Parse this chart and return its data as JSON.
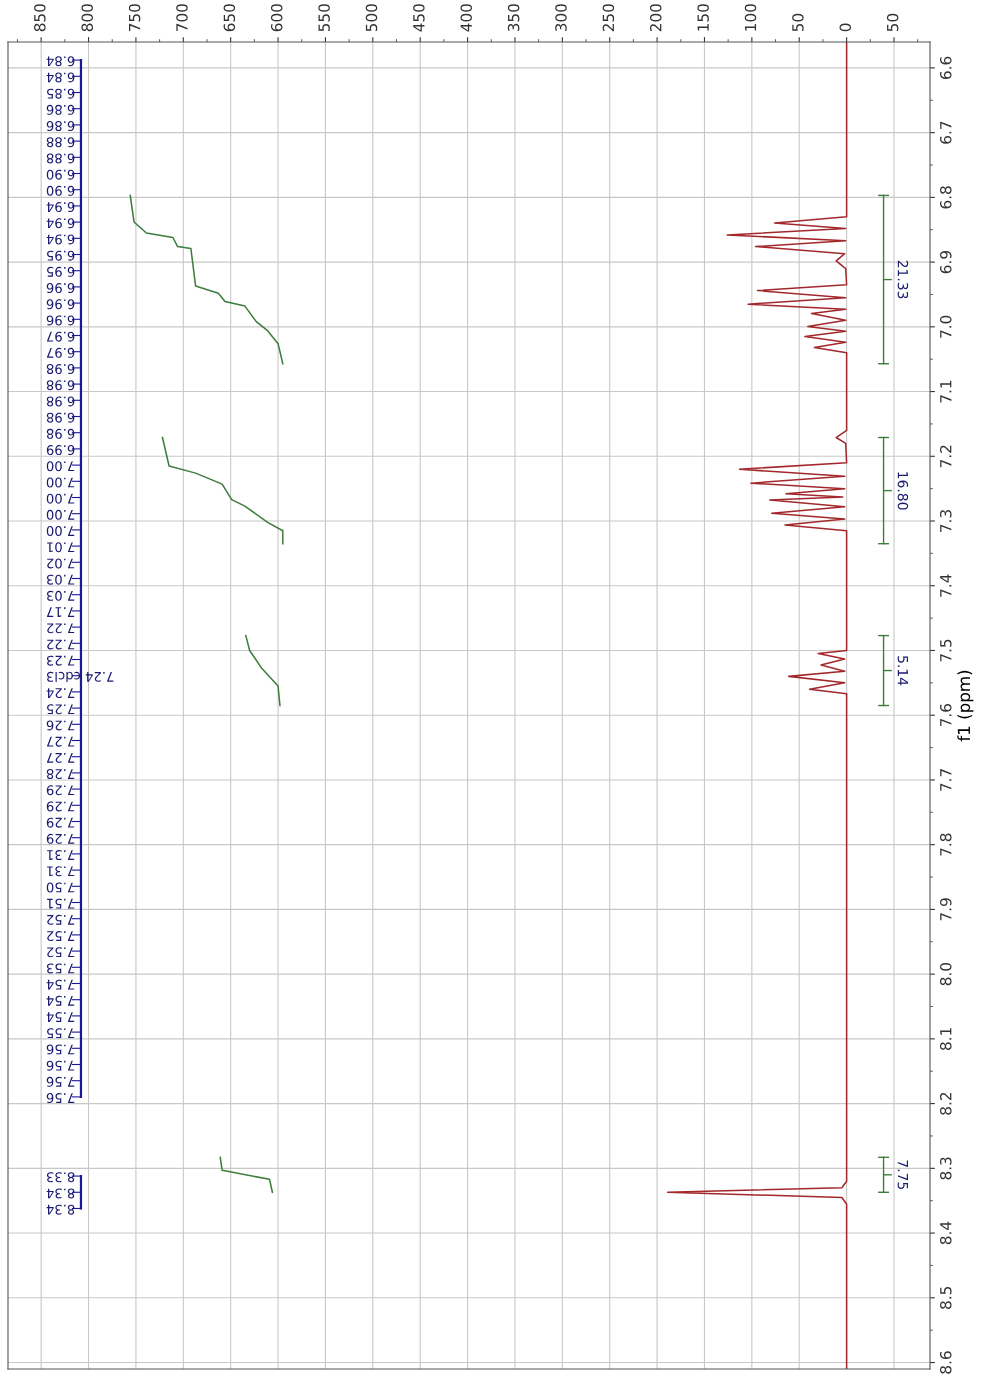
{
  "chart_data": {
    "type": "line",
    "orientation": "horizontal",
    "ylabel": "f1 (ppm)",
    "xlim": [
      885,
      -88
    ],
    "xticks": [
      850,
      800,
      750,
      700,
      650,
      600,
      550,
      500,
      450,
      400,
      350,
      300,
      250,
      200,
      150,
      100,
      50,
      0,
      {
        "value": -50,
        "label": "50"
      }
    ],
    "ylim": [
      8.61,
      6.56
    ],
    "yticks": [
      6.6,
      6.7,
      6.8,
      6.9,
      {
        "value": 7,
        "label": "7.0"
      },
      7.1,
      7.2,
      7.3,
      7.4,
      7.5,
      7.6,
      7.7,
      7.8,
      7.9,
      {
        "value": 8,
        "label": "8.0"
      },
      8.1,
      8.2,
      8.3,
      8.4,
      8.5,
      8.6
    ],
    "grid": true,
    "marker": "none",
    "line_style": "solid",
    "series": [
      {
        "color": "#a3282c",
        "x": [
          6.56,
          6.8,
          6.83,
          6.8395,
          6.848,
          6.858,
          6.867,
          6.876,
          6.887,
          6.898,
          6.91,
          6.935,
          6.944,
          6.955,
          6.965,
          6.973,
          6.9795,
          6.99,
          6.9995,
          7.007,
          7.015,
          7.024,
          7.032,
          7.04,
          7.16,
          7.171,
          7.18,
          7.21,
          7.22,
          7.231,
          7.2415,
          7.25,
          7.258,
          7.263,
          7.2677,
          7.278,
          7.288,
          7.297,
          7.306,
          7.315,
          7.5,
          7.5046,
          7.513,
          7.5226,
          7.532,
          7.54,
          7.55,
          7.56,
          7.567,
          8.32,
          8.33,
          8.337,
          8.345,
          8.355,
          8.61
        ],
        "values": [
          0,
          0,
          0,
          76,
          1,
          126,
          1,
          96,
          2,
          11,
          1,
          0,
          94,
          1,
          104,
          1,
          37,
          1,
          41,
          1,
          44,
          1,
          34,
          0,
          0,
          11,
          1,
          0,
          113,
          2,
          101,
          2,
          64,
          4,
          81,
          2,
          79,
          2,
          65,
          0,
          0,
          30,
          2,
          27,
          2,
          61,
          2,
          39,
          0,
          0,
          5,
          189,
          5,
          0,
          0
        ]
      },
      {
        "color": "#3c7d3c",
        "x": [
          6.797,
          6.838,
          6.855,
          6.862,
          6.876,
          6.879,
          6.937,
          6.948,
          6.961,
          6.968,
          6.992,
          7.006,
          7.026,
          7.057
        ],
        "values": [
          756,
          752,
          739,
          711,
          706,
          692,
          687,
          663,
          656,
          635,
          623,
          611,
          600,
          595
        ]
      },
      {
        "color": "#3c7d3c",
        "x": [
          7.171,
          7.215,
          7.226,
          7.243,
          7.267,
          7.277,
          7.302,
          7.315,
          7.335
        ],
        "values": [
          722,
          715,
          687,
          659,
          649,
          635,
          611,
          595,
          595
        ]
      },
      {
        "color": "#3c7d3c",
        "x": [
          7.477,
          7.5,
          7.528,
          7.555,
          7.585
        ],
        "values": [
          634,
          630,
          617,
          600,
          598
        ]
      },
      {
        "color": "#3c7d3c",
        "x": [
          8.283,
          8.303,
          8.317,
          8.337
        ],
        "values": [
          661,
          659,
          609,
          606
        ]
      }
    ],
    "annotations": [
      "21.33",
      "16.80",
      "5.14",
      "7.75",
      "6.84",
      "6.84",
      "6.85",
      "6.86",
      "6.86",
      "6.88",
      "6.88",
      "6.90",
      "6.90",
      "6.94",
      "6.94",
      "6.94",
      "6.95",
      "6.95",
      "6.96",
      "6.96",
      "6.96",
      "6.97",
      "6.97",
      "6.98",
      "6.98",
      "6.98",
      "6.98",
      "6.98",
      "6.99",
      "7.00",
      "7.00",
      "7.00",
      "7.00",
      "7.00",
      "7.01",
      "7.02",
      "7.03",
      "7.03",
      "7.17",
      "7.22",
      "7.22",
      "7.23",
      "7.24 cdcl3",
      "7.24",
      "7.25",
      "7.26",
      "7.27",
      "7.27",
      "7.28",
      "7.29",
      "7.29",
      "7.29",
      "7.29",
      "7.31",
      "7.31",
      "7.50",
      "7.51",
      "7.52",
      "7.52",
      "7.52",
      "7.53",
      "7.54",
      "7.54",
      "7.54",
      "7.55",
      "7.56",
      "7.56",
      "7.56",
      "7.56",
      "8.33",
      "8.34",
      "8.34"
    ]
  }
}
